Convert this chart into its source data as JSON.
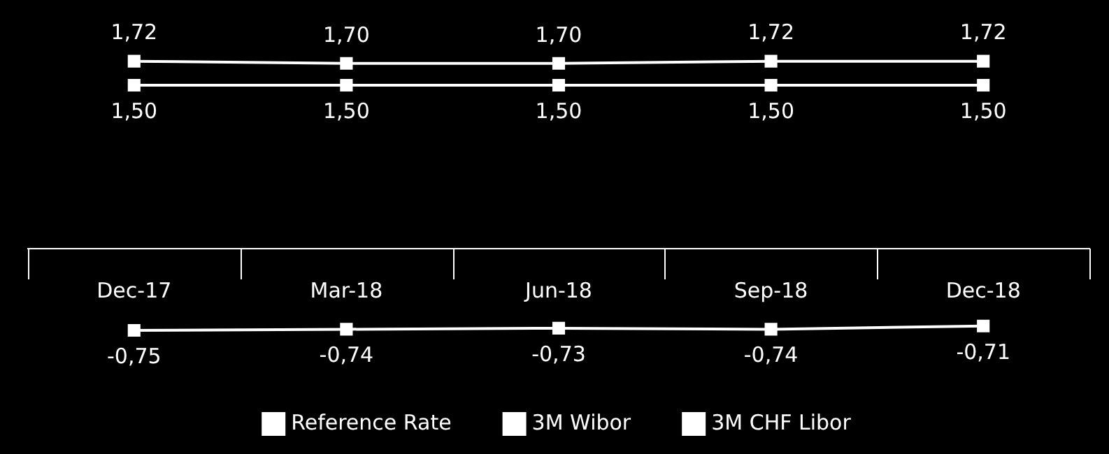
{
  "chart_data": {
    "type": "line",
    "categories": [
      "Dec-17",
      "Mar-18",
      "Jun-18",
      "Sep-18",
      "Dec-18"
    ],
    "series": [
      {
        "name": "Reference Rate",
        "color": "#ffffff",
        "values": [
          1.5,
          1.5,
          1.5,
          1.5,
          1.5
        ],
        "value_labels": [
          "1,50",
          "1,50",
          "1,50",
          "1,50",
          "1,50"
        ]
      },
      {
        "name": "3M Wibor",
        "color": "#ffffff",
        "values": [
          1.72,
          1.7,
          1.7,
          1.72,
          1.72
        ],
        "value_labels": [
          "1,72",
          "1,70",
          "1,70",
          "1,72",
          "1,72"
        ]
      },
      {
        "name": "3M CHF Libor",
        "color": "#ffffff",
        "values": [
          -0.75,
          -0.74,
          -0.73,
          -0.74,
          -0.71
        ],
        "value_labels": [
          "-0,75",
          "-0,74",
          "-0,73",
          "-0,74",
          "-0,71"
        ]
      }
    ],
    "tick_labels": "x",
    "grid": false,
    "legend": "bottom",
    "marker": "square",
    "line_style": "solid"
  }
}
